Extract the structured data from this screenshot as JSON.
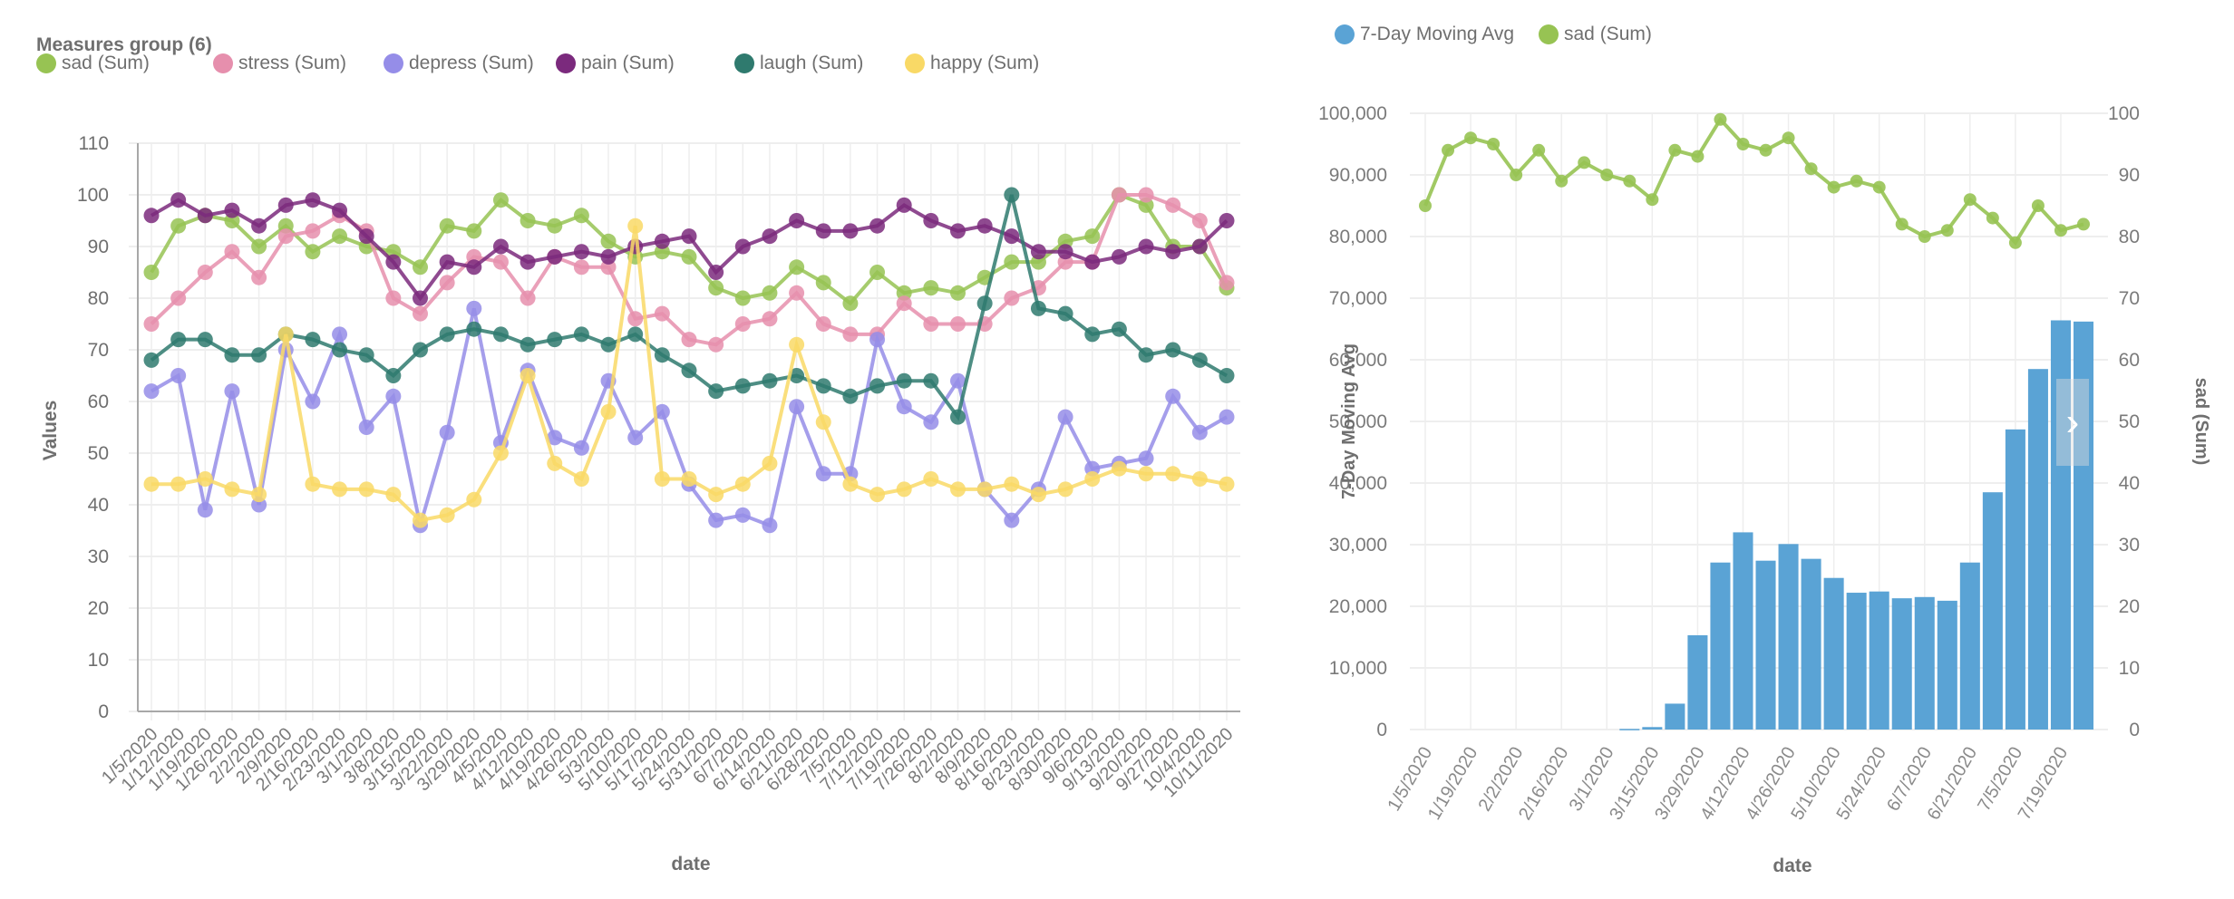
{
  "left_legend": {
    "title": "Measures group (6)",
    "items": [
      {
        "label": "sad (Sum)",
        "color": "#97c353"
      },
      {
        "label": "stress (Sum)",
        "color": "#e68fad"
      },
      {
        "label": "depress (Sum)",
        "color": "#958de8"
      },
      {
        "label": "pain (Sum)",
        "color": "#7b2a7d"
      },
      {
        "label": "laugh (Sum)",
        "color": "#2f7a6e"
      },
      {
        "label": "happy (Sum)",
        "color": "#f9d966"
      }
    ]
  },
  "right_legend": {
    "items": [
      {
        "label": "7-Day Moving Avg",
        "color": "#5aa3d5"
      },
      {
        "label": "sad (Sum)",
        "color": "#97c353"
      }
    ]
  },
  "nav_button": {
    "glyph": "›"
  },
  "chart_data": [
    {
      "type": "line",
      "title": "Measures group (6)",
      "xlabel": "date",
      "ylabel": "Values",
      "ylim": [
        0,
        110
      ],
      "yticks": [
        0,
        10,
        20,
        30,
        40,
        50,
        60,
        70,
        80,
        90,
        100,
        110
      ],
      "grid": true,
      "legend": "top-left",
      "x": [
        "1/5/2020",
        "1/12/2020",
        "1/19/2020",
        "1/26/2020",
        "2/2/2020",
        "2/9/2020",
        "2/16/2020",
        "2/23/2020",
        "3/1/2020",
        "3/8/2020",
        "3/15/2020",
        "3/22/2020",
        "3/29/2020",
        "4/5/2020",
        "4/12/2020",
        "4/19/2020",
        "4/26/2020",
        "5/3/2020",
        "5/10/2020",
        "5/17/2020",
        "5/24/2020",
        "5/31/2020",
        "6/7/2020",
        "6/14/2020",
        "6/21/2020",
        "6/28/2020",
        "7/5/2020",
        "7/12/2020",
        "7/19/2020",
        "7/26/2020",
        "8/2/2020",
        "8/9/2020",
        "8/16/2020",
        "8/23/2020",
        "8/30/2020",
        "9/6/2020",
        "9/13/2020",
        "9/20/2020",
        "9/27/2020",
        "10/4/2020",
        "10/11/2020"
      ],
      "series": [
        {
          "name": "sad (Sum)",
          "color": "#97c353",
          "values": [
            85,
            94,
            96,
            95,
            90,
            94,
            89,
            92,
            90,
            89,
            86,
            94,
            93,
            99,
            95,
            94,
            96,
            91,
            88,
            89,
            88,
            82,
            80,
            81,
            86,
            83,
            79,
            85,
            81,
            82,
            81,
            84,
            87,
            87,
            91,
            92,
            100,
            98,
            90,
            90,
            82
          ]
        },
        {
          "name": "stress (Sum)",
          "color": "#e68fad",
          "values": [
            75,
            80,
            85,
            89,
            84,
            92,
            93,
            96,
            93,
            80,
            77,
            83,
            88,
            87,
            80,
            88,
            86,
            86,
            76,
            77,
            72,
            71,
            75,
            76,
            81,
            75,
            73,
            73,
            79,
            75,
            75,
            75,
            80,
            82,
            87,
            87,
            100,
            100,
            98,
            95,
            83
          ]
        },
        {
          "name": "depress (Sum)",
          "color": "#958de8",
          "values": [
            62,
            65,
            39,
            62,
            40,
            70,
            60,
            73,
            55,
            61,
            36,
            54,
            78,
            52,
            66,
            53,
            51,
            64,
            53,
            58,
            44,
            37,
            38,
            36,
            59,
            46,
            46,
            72,
            59,
            56,
            64,
            43,
            37,
            43,
            57,
            47,
            48,
            49,
            61,
            54,
            57
          ]
        },
        {
          "name": "pain (Sum)",
          "color": "#7b2a7d",
          "values": [
            96,
            99,
            96,
            97,
            94,
            98,
            99,
            97,
            92,
            87,
            80,
            87,
            86,
            90,
            87,
            88,
            89,
            88,
            90,
            91,
            92,
            85,
            90,
            92,
            95,
            93,
            93,
            94,
            98,
            95,
            93,
            94,
            92,
            89,
            89,
            87,
            88,
            90,
            89,
            90,
            95
          ]
        },
        {
          "name": "laugh (Sum)",
          "color": "#2f7a6e",
          "values": [
            68,
            72,
            72,
            69,
            69,
            73,
            72,
            70,
            69,
            65,
            70,
            73,
            74,
            73,
            71,
            72,
            73,
            71,
            73,
            69,
            66,
            62,
            63,
            64,
            65,
            63,
            61,
            63,
            64,
            64,
            57,
            79,
            100,
            78,
            77,
            73,
            74,
            69,
            70,
            68,
            65
          ]
        },
        {
          "name": "happy (Sum)",
          "color": "#f9d966",
          "values": [
            44,
            44,
            45,
            43,
            42,
            73,
            44,
            43,
            43,
            42,
            37,
            38,
            41,
            50,
            65,
            48,
            45,
            58,
            94,
            45,
            45,
            42,
            44,
            48,
            71,
            56,
            44,
            42,
            43,
            45,
            43,
            43,
            44,
            42,
            43,
            45,
            47,
            46,
            46,
            45,
            44
          ]
        }
      ]
    },
    {
      "type": "bar+line",
      "xlabel": "date",
      "ylabel_left": "7-Day Moving Avg",
      "ylabel_right": "sad (Sum)",
      "ylim_left": [
        0,
        100000
      ],
      "ylim_right": [
        0,
        100
      ],
      "yticks_left": [
        "0",
        "10,000",
        "20,000",
        "30,000",
        "40,000",
        "50,000",
        "60,000",
        "70,000",
        "80,000",
        "90,000",
        "100,000"
      ],
      "yticks_right": [
        "0",
        "10",
        "20",
        "30",
        "40",
        "50",
        "60",
        "70",
        "80",
        "90",
        "100"
      ],
      "grid": true,
      "legend": "top-left",
      "x": [
        "1/5/2020",
        "1/12/2020",
        "1/19/2020",
        "1/26/2020",
        "2/2/2020",
        "2/9/2020",
        "2/16/2020",
        "2/23/2020",
        "3/1/2020",
        "3/8/2020",
        "3/15/2020",
        "3/22/2020",
        "3/29/2020",
        "4/5/2020",
        "4/12/2020",
        "4/19/2020",
        "4/26/2020",
        "5/3/2020",
        "5/10/2020",
        "5/17/2020",
        "5/24/2020",
        "5/31/2020",
        "6/7/2020",
        "6/14/2020",
        "6/21/2020",
        "6/28/2020",
        "7/5/2020",
        "7/12/2020",
        "7/19/2020",
        "7/26/2020"
      ],
      "x_tick_labels": [
        "1/5/2020",
        "1/19/2020",
        "2/2/2020",
        "2/16/2020",
        "3/1/2020",
        "3/15/2020",
        "3/29/2020",
        "4/12/2020",
        "4/26/2020",
        "5/10/2020",
        "5/24/2020",
        "6/7/2020",
        "6/21/2020",
        "7/5/2020",
        "7/19/2020"
      ],
      "series": [
        {
          "name": "7-Day Moving Avg",
          "type": "bar",
          "axis": "left",
          "color": "#5aa3d5",
          "values": [
            0,
            0,
            0,
            0,
            0,
            0,
            0,
            0,
            0,
            100,
            400,
            4200,
            15300,
            27100,
            32000,
            27400,
            30100,
            27700,
            24600,
            22200,
            22400,
            21300,
            21500,
            20900,
            27100,
            38500,
            48700,
            58500,
            66400,
            66200
          ]
        },
        {
          "name": "sad (Sum)",
          "type": "line",
          "axis": "right",
          "color": "#97c353",
          "values": [
            85,
            94,
            96,
            95,
            90,
            94,
            89,
            92,
            90,
            89,
            86,
            94,
            93,
            99,
            95,
            94,
            96,
            91,
            88,
            89,
            88,
            82,
            80,
            81,
            86,
            83,
            79,
            85,
            81,
            82
          ]
        }
      ]
    }
  ]
}
